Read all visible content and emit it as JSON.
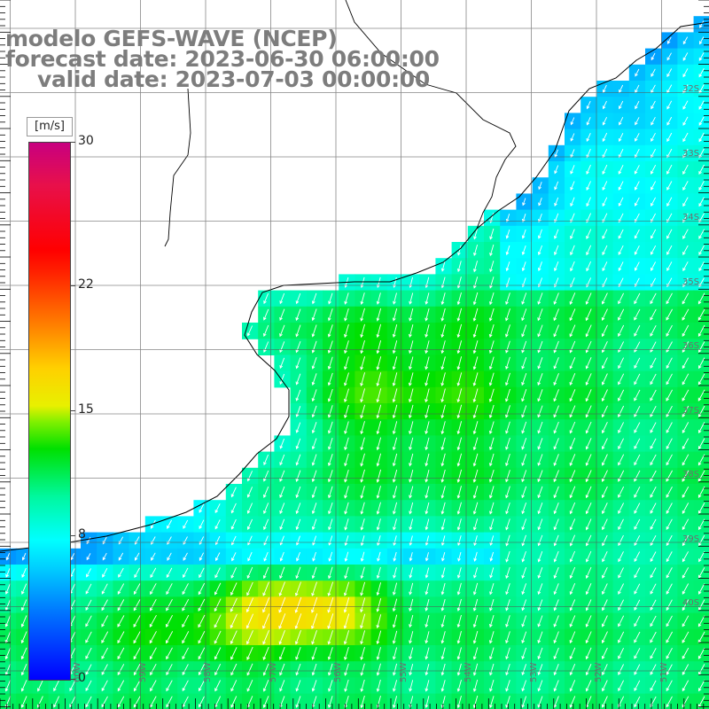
{
  "title": {
    "line1": "modelo GEFS-WAVE (NCEP)",
    "line2": "forecast date: 2023-06-30 06:00:00",
    "line3": "valid date: 2023-07-03 00:00:00"
  },
  "legend": {
    "unit": "[m/s]",
    "ticks": [
      {
        "label": "30",
        "value": 30
      },
      {
        "label": "22",
        "value": 22
      },
      {
        "label": "15",
        "value": 15
      },
      {
        "label": "8",
        "value": 8
      },
      {
        "label": "0",
        "value": 0
      }
    ],
    "min": 0,
    "max": 30
  },
  "axes": {
    "lat_labels": [
      "32S",
      "33S",
      "34S",
      "35S",
      "36S",
      "37S",
      "38S",
      "39S",
      "40S"
    ],
    "lon_labels": [
      "60W",
      "59W",
      "58W",
      "57W",
      "56W",
      "55W",
      "54W",
      "53W",
      "52W",
      "51W"
    ]
  },
  "map_data": {
    "type": "heatmap",
    "variable": "wind speed",
    "unit": "m/s",
    "lat_range": [
      -41,
      -30
    ],
    "lon_range": [
      -61,
      -50
    ],
    "wind_direction": "from north-northeast",
    "zones": [
      {
        "region": "north coast",
        "speed": 10
      },
      {
        "region": "central offshore",
        "speed": 13
      },
      {
        "region": "south band",
        "speed": 7
      },
      {
        "region": "southern core",
        "speed": 16
      }
    ]
  }
}
